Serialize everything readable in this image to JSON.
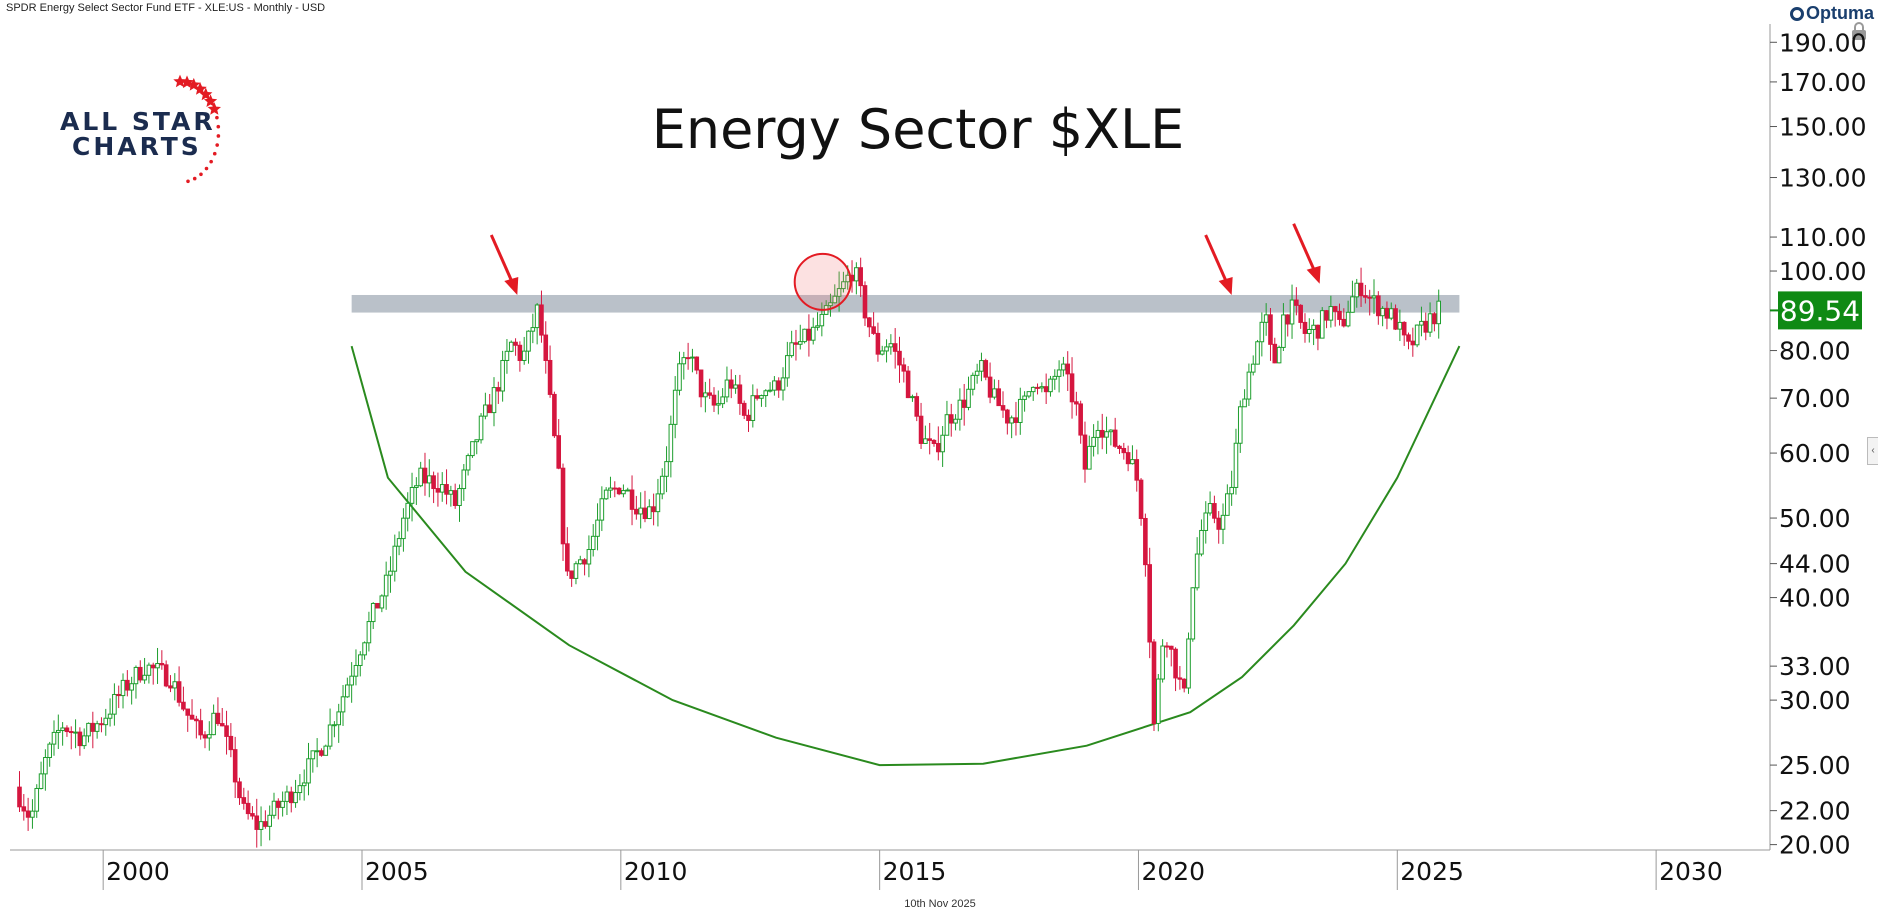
{
  "header": {
    "instrument": "SPDR Energy Select Sector Fund ETF - XLE:US - Monthly - USD",
    "brand": "Optuma"
  },
  "footer": {
    "date": "10th Nov 2025"
  },
  "logo": {
    "line1": "ALL STAR",
    "line2": "CHARTS"
  },
  "colors": {
    "up": "#1e9e2e",
    "down": "#d5163f",
    "arc": "#2a8a1e",
    "resistance_band": "#aeb6c0",
    "arrow": "#e31b23",
    "price_badge": "#0f8a14",
    "logo_navy": "#1b2c4f",
    "logo_red": "#e31b23"
  },
  "chart_data": {
    "type": "candlestick",
    "title": "Energy Sector $XLE",
    "x_axis": {
      "range": [
        1998.2,
        2032.2
      ],
      "ticks": [
        2000,
        2005,
        2010,
        2015,
        2020,
        2025,
        2030
      ]
    },
    "y_axis": {
      "scale": "log",
      "range": [
        19.7,
        200
      ],
      "ticks": [
        20,
        22,
        25,
        30,
        33,
        40,
        44,
        50,
        60,
        70,
        80,
        100,
        110,
        130,
        150,
        170,
        190
      ],
      "tick_labels": [
        "20.00",
        "22.00",
        "25.00",
        "30.00",
        "33.00",
        "40.00",
        "44.00",
        "50.00",
        "60.00",
        "70.00",
        "80.00",
        "100.00",
        "110.00",
        "130.00",
        "150.00",
        "170.00",
        "190.00"
      ]
    },
    "last_price": 89.54,
    "last_price_label": "89.54",
    "resistance_zone": {
      "from": 2004.8,
      "to": 2026.2,
      "low": 89,
      "high": 93.5
    },
    "rounding_arc": [
      [
        2004.8,
        81
      ],
      [
        2005.5,
        56
      ],
      [
        2007,
        43
      ],
      [
        2009,
        35
      ],
      [
        2011,
        30
      ],
      [
        2013,
        27
      ],
      [
        2015,
        25
      ],
      [
        2017,
        25.1
      ],
      [
        2019,
        26.4
      ],
      [
        2021,
        29
      ],
      [
        2022,
        32
      ],
      [
        2023,
        37
      ],
      [
        2024,
        44
      ],
      [
        2025,
        56
      ],
      [
        2026.2,
        81
      ]
    ],
    "highlight_circle": {
      "x": 2013.9,
      "y": 97
    },
    "arrows": [
      {
        "x": 2008.0,
        "y": 93.5
      },
      {
        "x": 2021.8,
        "y": 93.5
      },
      {
        "x": 2023.5,
        "y": 96.5
      }
    ],
    "series": [
      {
        "name": "XLE",
        "path": [
          [
            1998.3,
            23.5
          ],
          [
            1998.6,
            21.5
          ],
          [
            1998.9,
            25.5
          ],
          [
            1999.2,
            28
          ],
          [
            1999.6,
            27
          ],
          [
            2000.0,
            28.5
          ],
          [
            2000.4,
            31
          ],
          [
            2000.8,
            33
          ],
          [
            2001.3,
            32
          ],
          [
            2001.6,
            29
          ],
          [
            2001.9,
            27
          ],
          [
            2002.2,
            29
          ],
          [
            2002.5,
            25
          ],
          [
            2002.7,
            22
          ],
          [
            2003.0,
            21
          ],
          [
            2003.3,
            22
          ],
          [
            2003.6,
            23
          ],
          [
            2004.0,
            25
          ],
          [
            2004.3,
            27
          ],
          [
            2004.6,
            30
          ],
          [
            2004.9,
            34
          ],
          [
            2005.2,
            38
          ],
          [
            2005.5,
            42
          ],
          [
            2005.8,
            50
          ],
          [
            2006.1,
            56
          ],
          [
            2006.5,
            55
          ],
          [
            2006.8,
            52
          ],
          [
            2007.0,
            57
          ],
          [
            2007.3,
            65
          ],
          [
            2007.6,
            72
          ],
          [
            2007.9,
            82
          ],
          [
            2008.1,
            78
          ],
          [
            2008.4,
            90
          ],
          [
            2008.6,
            72
          ],
          [
            2008.8,
            56
          ],
          [
            2008.95,
            42
          ],
          [
            2009.15,
            44
          ],
          [
            2009.4,
            46
          ],
          [
            2009.7,
            53
          ],
          [
            2010.0,
            55
          ],
          [
            2010.3,
            52
          ],
          [
            2010.6,
            51
          ],
          [
            2010.9,
            60
          ],
          [
            2011.1,
            74
          ],
          [
            2011.3,
            80
          ],
          [
            2011.6,
            70
          ],
          [
            2011.85,
            68
          ],
          [
            2012.1,
            74
          ],
          [
            2012.4,
            66
          ],
          [
            2012.7,
            72
          ],
          [
            2013.0,
            72
          ],
          [
            2013.3,
            80
          ],
          [
            2013.7,
            84
          ],
          [
            2013.95,
            88
          ],
          [
            2014.3,
            96
          ],
          [
            2014.5,
            101
          ],
          [
            2014.7,
            90
          ],
          [
            2014.95,
            80
          ],
          [
            2015.2,
            82
          ],
          [
            2015.5,
            74
          ],
          [
            2015.8,
            63
          ],
          [
            2016.05,
            60
          ],
          [
            2016.3,
            66
          ],
          [
            2016.6,
            69
          ],
          [
            2016.95,
            76
          ],
          [
            2017.2,
            70
          ],
          [
            2017.5,
            66
          ],
          [
            2017.8,
            69
          ],
          [
            2018.0,
            75
          ],
          [
            2018.2,
            70
          ],
          [
            2018.5,
            77
          ],
          [
            2018.8,
            68
          ],
          [
            2018.95,
            57
          ],
          [
            2019.2,
            66
          ],
          [
            2019.5,
            62
          ],
          [
            2019.8,
            60
          ],
          [
            2020.0,
            55
          ],
          [
            2020.15,
            44
          ],
          [
            2020.3,
            28
          ],
          [
            2020.5,
            37
          ],
          [
            2020.7,
            33
          ],
          [
            2020.9,
            30
          ],
          [
            2021.0,
            40
          ],
          [
            2021.2,
            48
          ],
          [
            2021.4,
            51
          ],
          [
            2021.6,
            49
          ],
          [
            2021.8,
            55
          ],
          [
            2022.0,
            70
          ],
          [
            2022.2,
            78
          ],
          [
            2022.45,
            88
          ],
          [
            2022.6,
            76
          ],
          [
            2022.8,
            88
          ],
          [
            2023.0,
            90
          ],
          [
            2023.2,
            84
          ],
          [
            2023.45,
            85
          ],
          [
            2023.7,
            90
          ],
          [
            2023.9,
            85
          ],
          [
            2024.1,
            92
          ],
          [
            2024.3,
            96
          ],
          [
            2024.5,
            92
          ],
          [
            2024.7,
            90
          ],
          [
            2024.9,
            88
          ],
          [
            2025.0,
            86
          ],
          [
            2025.2,
            80
          ],
          [
            2025.4,
            84
          ],
          [
            2025.6,
            87
          ],
          [
            2025.8,
            89.54
          ]
        ]
      }
    ]
  }
}
